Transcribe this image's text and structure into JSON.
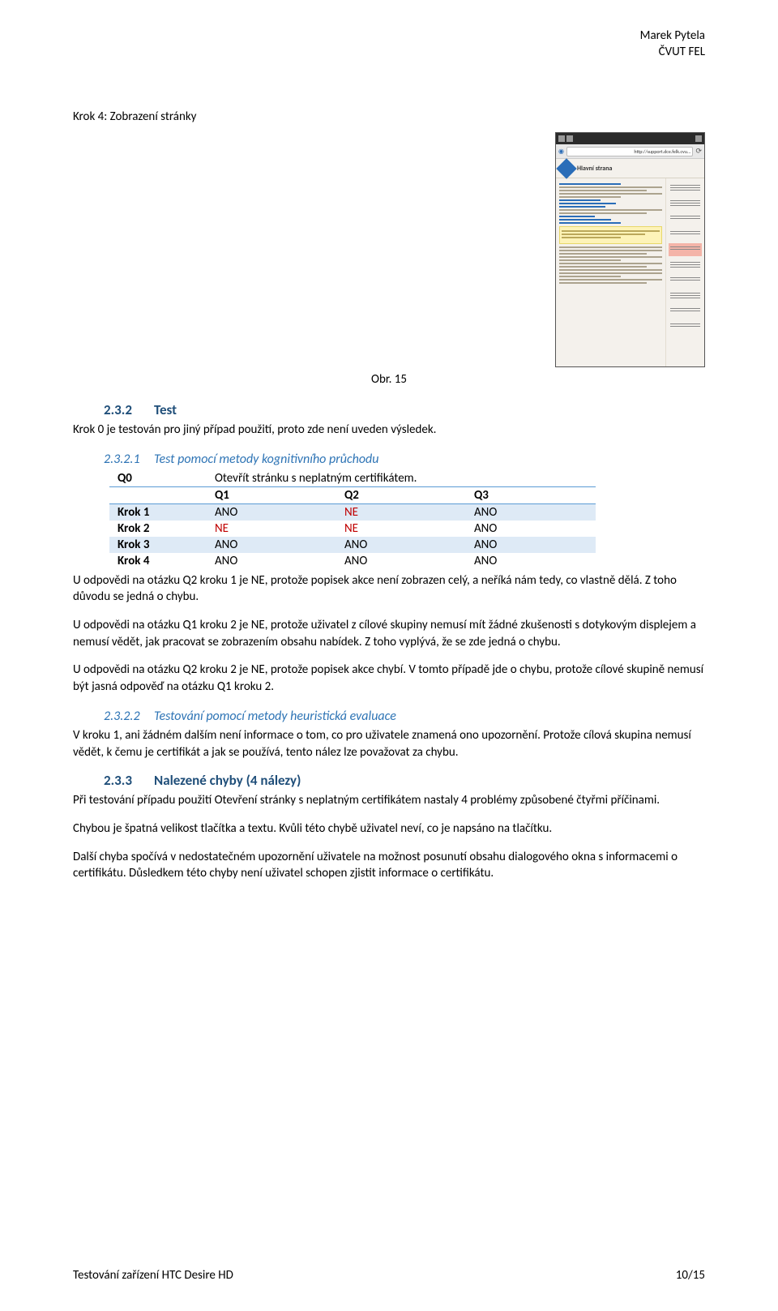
{
  "header": {
    "author": "Marek Pytela",
    "institution": "ČVUT FEL"
  },
  "step4": {
    "label": "Krok 4: Zobrazení stránky",
    "figure_caption": "Obr. 15",
    "screenshot": {
      "url_text": "http://support.dce.felk.cvu...",
      "page_title": "Hlavní strana"
    }
  },
  "sec_232": {
    "num": "2.3.2",
    "title": "Test",
    "intro": "Krok 0 je testován pro jiný případ použití, proto zde není uveden výsledek."
  },
  "sec_2321": {
    "num": "2.3.2.1",
    "title": "Test pomocí metody kognitivního průchodu"
  },
  "table": {
    "q0_label": "Q0",
    "q0_text": "Otevřít stránku s neplatným certifikátem.",
    "headers": [
      "Q1",
      "Q2",
      "Q3"
    ],
    "rows": [
      {
        "label": "Krok 1",
        "cells": [
          "ANO",
          "NE",
          "ANO"
        ],
        "ne_idx": [
          1
        ]
      },
      {
        "label": "Krok 2",
        "cells": [
          "NE",
          "NE",
          "ANO"
        ],
        "ne_idx": [
          0,
          1
        ]
      },
      {
        "label": "Krok 3",
        "cells": [
          "ANO",
          "ANO",
          "ANO"
        ],
        "ne_idx": []
      },
      {
        "label": "Krok 4",
        "cells": [
          "ANO",
          "ANO",
          "ANO"
        ],
        "ne_idx": []
      }
    ]
  },
  "paragraphs": {
    "p1": "U odpovědi na otázku Q2 kroku 1 je NE, protože popisek akce není zobrazen celý, a neříká nám tedy, co vlastně dělá. Z toho důvodu se jedná o chybu.",
    "p2": " U odpovědi na otázku Q1 kroku 2 je NE, protože uživatel z cílové skupiny nemusí mít žádné zkušenosti s dotykovým displejem a nemusí vědět, jak pracovat se zobrazením obsahu nabídek. Z toho vyplývá, že se zde jedná o chybu.",
    "p3": "U odpovědi na otázku Q2 kroku 2 je NE, protože popisek akce chybí. V tomto případě jde o chybu, protože cílové skupině nemusí být jasná odpověď na otázku Q1 kroku 2."
  },
  "sec_2322": {
    "num": "2.3.2.2",
    "title": "Testování pomocí metody heuristická evaluace",
    "body": "V kroku 1, ani žádném dalším není informace o tom, co pro uživatele znamená ono upozornění. Protože cílová skupina nemusí vědět, k čemu je certifikát a jak se používá, tento nález lze považovat za chybu."
  },
  "sec_233": {
    "num": "2.3.3",
    "title": "Nalezené chyby (4 nálezy)",
    "p1": "Při testování případu použití Otevření stránky s neplatným certifikátem nastaly 4 problémy způsobené čtyřmi příčinami.",
    "p2": "Chybou je špatná velikost tlačítka a textu. Kvůli této chybě uživatel neví, co je napsáno na tlačítku.",
    "p3": "Další chyba spočívá v nedostatečném upozornění uživatele na možnost posunutí obsahu dialogového okna s informacemi o certifikátu. Důsledkem této chyby není uživatel schopen zjistit informace o certifikátu."
  },
  "footer": {
    "left": "Testování zařízení HTC Desire HD",
    "right": "10/15"
  }
}
